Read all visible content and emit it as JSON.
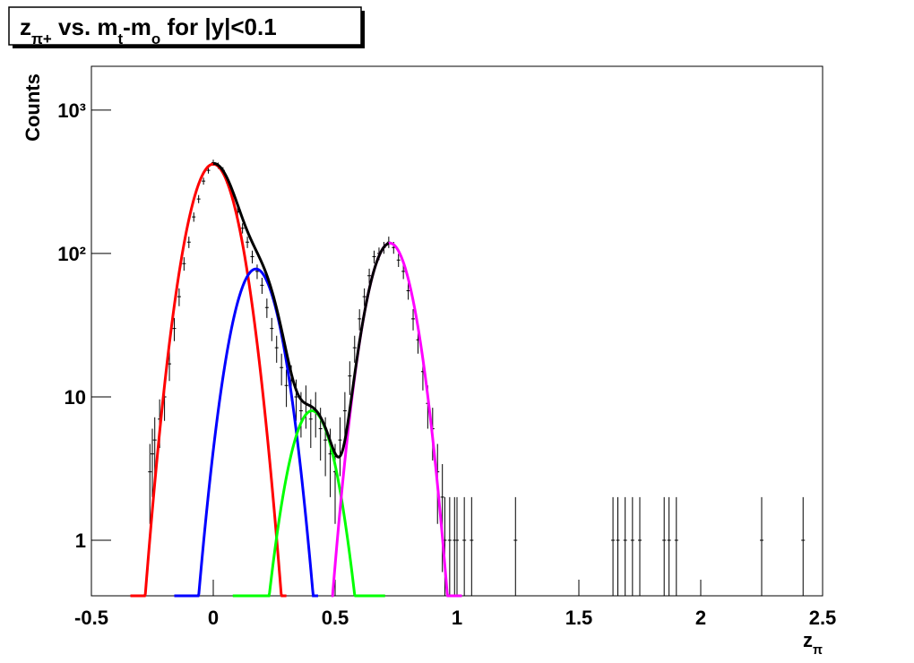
{
  "chart_data": {
    "type": "histogram-fit",
    "title": [
      {
        "text": "z"
      },
      {
        "text": "π+",
        "sub": true
      },
      {
        "text": " vs. m"
      },
      {
        "text": "t",
        "sub": true
      },
      {
        "text": "-m"
      },
      {
        "text": "o",
        "sub": true
      },
      {
        "text": " for |y|<0.1"
      }
    ],
    "x_label": [
      {
        "text": "z"
      },
      {
        "text": "π",
        "sub": true
      }
    ],
    "y_label": "Counts",
    "log_y": true,
    "xlim": [
      -0.5,
      2.5
    ],
    "xticks": [
      -0.5,
      0,
      0.5,
      1,
      1.5,
      2,
      2.5
    ],
    "ylim": [
      0.41,
      2020
    ],
    "yticks": [
      {
        "value": 1000,
        "label": "10³"
      },
      {
        "value": 100,
        "label": "10²"
      },
      10,
      1
    ],
    "points": {
      "color": "#000000",
      "x": [
        -0.26,
        -0.25,
        -0.24,
        -0.22,
        -0.2,
        -0.18,
        -0.16,
        -0.14,
        -0.12,
        -0.1,
        -0.08,
        -0.06,
        -0.04,
        -0.02,
        0,
        0.02,
        0.04,
        0.06,
        0.08,
        0.1,
        0.12,
        0.14,
        0.16,
        0.18,
        0.2,
        0.22,
        0.24,
        0.26,
        0.28,
        0.3,
        0.32,
        0.34,
        0.36,
        0.38,
        0.4,
        0.42,
        0.44,
        0.46,
        0.48,
        0.5,
        0.52,
        0.54,
        0.56,
        0.58,
        0.6,
        0.62,
        0.64,
        0.66,
        0.68,
        0.7,
        0.72,
        0.74,
        0.76,
        0.78,
        0.8,
        0.82,
        0.84,
        0.86,
        0.88,
        0.9,
        0.92,
        0.94,
        0.95,
        0.97,
        0.99,
        1.0,
        1.03,
        1.06,
        1.24,
        1.64,
        1.66,
        1.69,
        1.72,
        1.75,
        1.85,
        1.87,
        1.9,
        2.25,
        2.42
      ],
      "values": [
        3,
        4,
        5,
        7,
        10,
        17,
        30,
        50,
        85,
        120,
        180,
        240,
        320,
        380,
        430,
        410,
        380,
        310,
        250,
        195,
        150,
        120,
        95,
        75,
        60,
        42,
        30,
        22,
        16,
        12,
        13,
        10,
        8,
        9,
        7,
        8,
        6,
        5,
        4,
        3,
        5,
        8,
        14,
        22,
        35,
        50,
        70,
        95,
        100,
        110,
        120,
        110,
        90,
        75,
        55,
        35,
        25,
        15,
        9,
        6,
        3,
        2,
        1,
        1,
        1,
        1,
        1,
        1,
        1,
        1,
        1,
        1,
        1,
        1,
        1,
        1,
        1,
        1,
        1
      ],
      "errors": [
        1.7,
        2,
        2.2,
        2.6,
        3.2,
        4.1,
        5.5,
        7.1,
        9.2,
        11,
        13.4,
        15.5,
        17.9,
        19.5,
        20.7,
        20.2,
        19.5,
        17.6,
        15.8,
        14,
        12.2,
        11,
        9.7,
        8.7,
        7.7,
        6.5,
        5.5,
        4.7,
        4,
        3.5,
        3.6,
        3.2,
        2.8,
        3,
        2.6,
        2.8,
        2.4,
        2.2,
        2,
        1.7,
        2.2,
        2.8,
        3.7,
        4.7,
        5.9,
        7.1,
        8.4,
        9.7,
        10,
        10.5,
        11,
        10.5,
        9.5,
        8.7,
        7.4,
        5.9,
        5,
        3.9,
        3,
        2.4,
        1.7,
        1.4,
        1,
        1,
        1,
        1,
        1,
        1,
        1,
        1,
        1,
        1,
        1,
        1,
        1,
        1,
        1,
        1,
        1
      ]
    },
    "fits": [
      {
        "color": "#ff0000",
        "range": [
          -0.34,
          0.3
        ],
        "terms": [
          [
            420,
            0,
            0.075
          ]
        ]
      },
      {
        "color": "#0000ff",
        "range": [
          -0.16,
          0.43
        ],
        "terms": [
          [
            78,
            0.175,
            0.0725
          ]
        ]
      },
      {
        "color": "#00ff00",
        "range": [
          0.08,
          0.705
        ],
        "terms": [
          [
            8,
            0.405,
            0.072
          ]
        ]
      },
      {
        "color": "#ff00ff",
        "range": [
          0.485,
          1.02
        ],
        "terms": [
          [
            118,
            0.725,
            0.07
          ]
        ]
      },
      {
        "color": "#000000",
        "range": [
          0,
          0.72
        ],
        "terms": [
          [
            420,
            0,
            0.075
          ],
          [
            78,
            0.175,
            0.0725
          ],
          [
            8,
            0.405,
            0.072
          ],
          [
            118,
            0.725,
            0.07
          ]
        ]
      }
    ]
  }
}
